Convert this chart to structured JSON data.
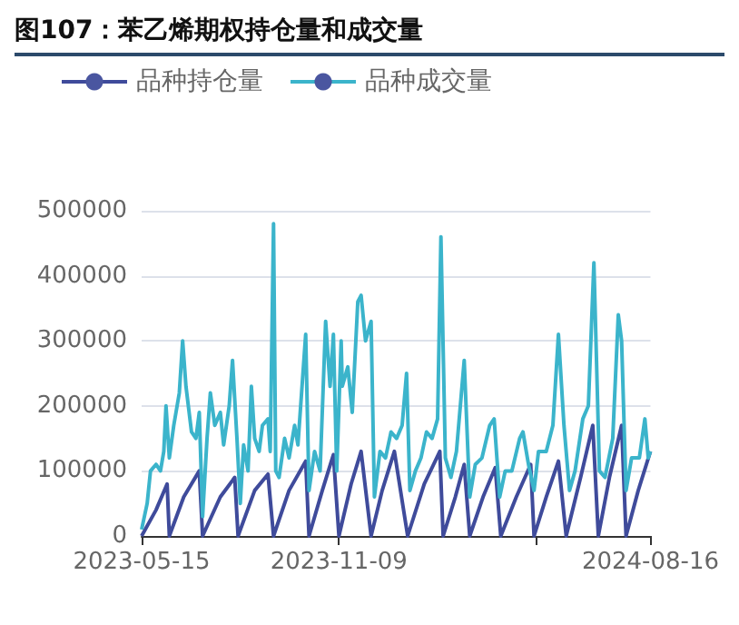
{
  "chart_data": {
    "type": "line",
    "title": "图107：苯乙烯期权持仓量和成交量",
    "series": [
      {
        "name": "品种持仓量",
        "color": "#3f4b9b",
        "x": [
          "2023-05-15",
          "2023-05-28",
          "2023-06-07",
          "2023-06-09",
          "2023-06-22",
          "2023-07-06",
          "2023-07-09",
          "2023-07-25",
          "2023-08-07",
          "2023-08-10",
          "2023-08-25",
          "2023-09-06",
          "2023-09-11",
          "2023-09-25",
          "2023-10-10",
          "2023-10-13",
          "2023-10-25",
          "2023-11-04",
          "2023-11-09",
          "2023-11-20",
          "2023-11-29",
          "2023-12-08",
          "2023-12-18",
          "2023-12-29",
          "2024-01-10",
          "2024-01-25",
          "2024-02-08",
          "2024-02-11",
          "2024-02-22",
          "2024-03-01",
          "2024-03-06",
          "2024-03-18",
          "2024-03-29",
          "2024-04-03",
          "2024-04-17",
          "2024-04-30",
          "2024-05-03",
          "2024-05-14",
          "2024-05-25",
          "2024-06-01",
          "2024-06-14",
          "2024-06-25",
          "2024-06-30",
          "2024-07-10",
          "2024-07-21",
          "2024-07-25",
          "2024-08-05",
          "2024-08-16"
        ],
        "values": [
          0,
          40000,
          80000,
          0,
          60000,
          100000,
          0,
          60000,
          90000,
          0,
          70000,
          95000,
          0,
          70000,
          115000,
          0,
          70000,
          125000,
          0,
          80000,
          130000,
          0,
          70000,
          130000,
          0,
          80000,
          130000,
          0,
          60000,
          110000,
          0,
          60000,
          105000,
          0,
          60000,
          110000,
          0,
          60000,
          115000,
          0,
          90000,
          170000,
          0,
          90000,
          170000,
          0,
          70000,
          130000
        ]
      },
      {
        "name": "品种成交量",
        "color": "#3bb4cb",
        "x": [
          "2023-05-15",
          "2023-05-20",
          "2023-05-23",
          "2023-05-28",
          "2023-06-01",
          "2023-06-04",
          "2023-06-06",
          "2023-06-09",
          "2023-06-13",
          "2023-06-18",
          "2023-06-21",
          "2023-06-24",
          "2023-06-29",
          "2023-07-03",
          "2023-07-06",
          "2023-07-09",
          "2023-07-13",
          "2023-07-16",
          "2023-07-20",
          "2023-07-25",
          "2023-07-28",
          "2023-08-02",
          "2023-08-05",
          "2023-08-09",
          "2023-08-12",
          "2023-08-15",
          "2023-08-19",
          "2023-08-22",
          "2023-08-25",
          "2023-08-29",
          "2023-09-01",
          "2023-09-06",
          "2023-09-08",
          "2023-09-11",
          "2023-09-13",
          "2023-09-16",
          "2023-09-21",
          "2023-09-25",
          "2023-09-30",
          "2023-10-03",
          "2023-10-10",
          "2023-10-13",
          "2023-10-18",
          "2023-10-23",
          "2023-10-28",
          "2023-11-01",
          "2023-11-04",
          "2023-11-07",
          "2023-11-11",
          "2023-11-12",
          "2023-11-17",
          "2023-11-21",
          "2023-11-26",
          "2023-11-29",
          "2023-12-03",
          "2023-12-08",
          "2023-12-11",
          "2023-12-16",
          "2023-12-21",
          "2023-12-26",
          "2023-12-31",
          "2024-01-05",
          "2024-01-09",
          "2024-01-12",
          "2024-01-17",
          "2024-01-22",
          "2024-01-27",
          "2024-02-01",
          "2024-02-06",
          "2024-02-09",
          "2024-02-13",
          "2024-02-18",
          "2024-02-23",
          "2024-03-01",
          "2024-03-06",
          "2024-03-11",
          "2024-03-17",
          "2024-03-24",
          "2024-03-28",
          "2024-04-02",
          "2024-04-07",
          "2024-04-13",
          "2024-04-20",
          "2024-04-23",
          "2024-04-28",
          "2024-05-03",
          "2024-05-07",
          "2024-05-14",
          "2024-05-20",
          "2024-05-25",
          "2024-05-30",
          "2024-06-04",
          "2024-06-09",
          "2024-06-16",
          "2024-06-21",
          "2024-06-26",
          "2024-07-01",
          "2024-07-06",
          "2024-07-13",
          "2024-07-18",
          "2024-07-21",
          "2024-07-25",
          "2024-07-30",
          "2024-08-06",
          "2024-08-11",
          "2024-08-14",
          "2024-08-16"
        ],
        "values": [
          10000,
          50000,
          100000,
          110000,
          100000,
          130000,
          200000,
          120000,
          170000,
          220000,
          300000,
          230000,
          160000,
          150000,
          190000,
          30000,
          150000,
          220000,
          170000,
          190000,
          140000,
          200000,
          270000,
          150000,
          50000,
          140000,
          100000,
          230000,
          150000,
          130000,
          170000,
          180000,
          130000,
          480000,
          100000,
          90000,
          150000,
          120000,
          170000,
          140000,
          310000,
          70000,
          130000,
          100000,
          330000,
          230000,
          310000,
          100000,
          300000,
          230000,
          260000,
          190000,
          360000,
          370000,
          300000,
          330000,
          60000,
          130000,
          120000,
          160000,
          150000,
          170000,
          250000,
          70000,
          100000,
          120000,
          160000,
          150000,
          180000,
          460000,
          120000,
          90000,
          130000,
          270000,
          60000,
          110000,
          120000,
          170000,
          180000,
          60000,
          100000,
          100000,
          150000,
          160000,
          110000,
          70000,
          130000,
          130000,
          170000,
          310000,
          170000,
          70000,
          100000,
          180000,
          200000,
          420000,
          100000,
          90000,
          150000,
          340000,
          300000,
          70000,
          120000,
          120000,
          180000,
          120000,
          130000
        ]
      }
    ],
    "xlim": [
      "2023-05-15",
      "2024-08-16"
    ],
    "xticks": [
      {
        "value": "2023-05-15",
        "label": "2023-05-15"
      },
      {
        "value": "2023-11-09",
        "label": "2023-11-09"
      },
      {
        "value": "2024-05-05",
        "label": null
      },
      {
        "value": "2024-08-16",
        "label": "2024-08-16"
      }
    ],
    "ylim": [
      0,
      500000
    ],
    "yticks": [
      0,
      100000,
      200000,
      300000,
      400000,
      500000
    ],
    "grid": "y",
    "legend": "top left",
    "marker": "none",
    "line_style": "solid"
  }
}
